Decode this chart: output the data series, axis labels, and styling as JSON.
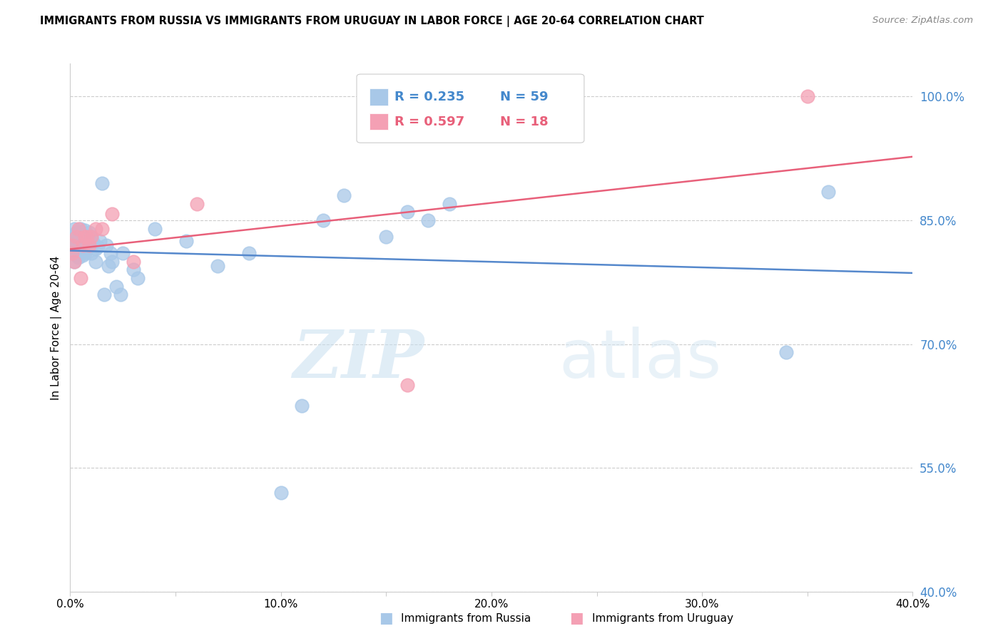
{
  "title": "IMMIGRANTS FROM RUSSIA VS IMMIGRANTS FROM URUGUAY IN LABOR FORCE | AGE 20-64 CORRELATION CHART",
  "source": "Source: ZipAtlas.com",
  "ylabel": "In Labor Force | Age 20-64",
  "xlim": [
    0.0,
    0.4
  ],
  "ylim": [
    0.4,
    1.04
  ],
  "xticks": [
    0.0,
    0.05,
    0.1,
    0.15,
    0.2,
    0.25,
    0.3,
    0.35,
    0.4
  ],
  "xticklabels": [
    "0.0%",
    "",
    "10.0%",
    "",
    "20.0%",
    "",
    "30.0%",
    "",
    "40.0%"
  ],
  "yticks": [
    0.4,
    0.55,
    0.7,
    0.85,
    1.0
  ],
  "yticklabels": [
    "40.0%",
    "55.0%",
    "70.0%",
    "85.0%",
    "100.0%"
  ],
  "russia_R": 0.235,
  "russia_N": 59,
  "uruguay_R": 0.597,
  "uruguay_N": 18,
  "russia_color": "#a8c8e8",
  "uruguay_color": "#f4a0b4",
  "russia_line_color": "#5588cc",
  "uruguay_line_color": "#e8607a",
  "russia_x": [
    0.001,
    0.001,
    0.001,
    0.002,
    0.002,
    0.002,
    0.002,
    0.003,
    0.003,
    0.003,
    0.003,
    0.004,
    0.004,
    0.004,
    0.005,
    0.005,
    0.005,
    0.006,
    0.006,
    0.006,
    0.007,
    0.007,
    0.007,
    0.008,
    0.008,
    0.009,
    0.009,
    0.01,
    0.01,
    0.011,
    0.012,
    0.012,
    0.013,
    0.014,
    0.015,
    0.016,
    0.017,
    0.018,
    0.019,
    0.02,
    0.022,
    0.024,
    0.025,
    0.03,
    0.032,
    0.04,
    0.055,
    0.07,
    0.085,
    0.1,
    0.11,
    0.12,
    0.13,
    0.15,
    0.16,
    0.17,
    0.18,
    0.34,
    0.36
  ],
  "russia_y": [
    0.83,
    0.82,
    0.815,
    0.84,
    0.825,
    0.81,
    0.8,
    0.835,
    0.82,
    0.815,
    0.808,
    0.83,
    0.818,
    0.805,
    0.84,
    0.825,
    0.81,
    0.832,
    0.82,
    0.808,
    0.838,
    0.822,
    0.81,
    0.83,
    0.815,
    0.835,
    0.82,
    0.828,
    0.81,
    0.822,
    0.815,
    0.8,
    0.818,
    0.825,
    0.895,
    0.76,
    0.82,
    0.795,
    0.81,
    0.8,
    0.77,
    0.76,
    0.81,
    0.79,
    0.78,
    0.84,
    0.825,
    0.795,
    0.81,
    0.52,
    0.625,
    0.85,
    0.88,
    0.83,
    0.86,
    0.85,
    0.87,
    0.69,
    0.885
  ],
  "uruguay_x": [
    0.001,
    0.001,
    0.002,
    0.003,
    0.004,
    0.005,
    0.006,
    0.007,
    0.008,
    0.009,
    0.01,
    0.012,
    0.015,
    0.02,
    0.06,
    0.16,
    0.03,
    0.35
  ],
  "uruguay_y": [
    0.82,
    0.81,
    0.8,
    0.83,
    0.84,
    0.78,
    0.82,
    0.83,
    0.83,
    0.82,
    0.83,
    0.84,
    0.84,
    0.858,
    0.87,
    0.65,
    0.8,
    1.0
  ],
  "watermark_zip": "ZIP",
  "watermark_atlas": "atlas",
  "bottom_legend_russia": "Immigrants from Russia",
  "bottom_legend_uruguay": "Immigrants from Uruguay"
}
